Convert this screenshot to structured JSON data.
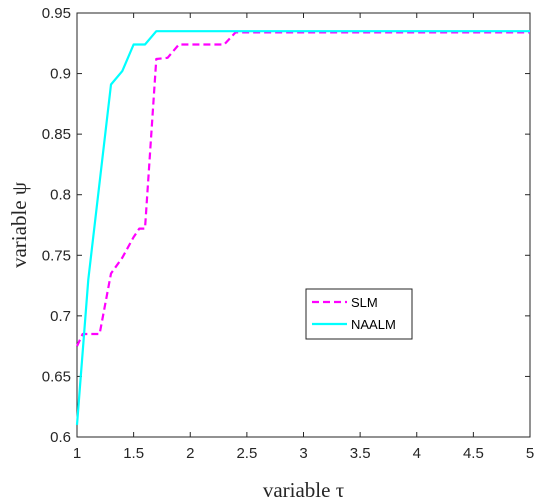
{
  "chart_data": {
    "type": "line",
    "xlabel": "variable τ",
    "ylabel": "variable ψ",
    "xlim": [
      1,
      5
    ],
    "ylim": [
      0.6,
      0.95
    ],
    "x_ticks": [
      "1",
      "1.5",
      "2",
      "2.5",
      "3",
      "3.5",
      "4",
      "4.5",
      "5"
    ],
    "y_ticks": [
      "0.6",
      "0.65",
      "0.7",
      "0.75",
      "0.8",
      "0.85",
      "0.9",
      "0.95"
    ],
    "grid": false,
    "legend_position": "center-right",
    "series": [
      {
        "name": "SLM",
        "color": "#ff00ff",
        "style": "dashed",
        "x": [
          1.0,
          1.05,
          1.2,
          1.3,
          1.4,
          1.5,
          1.55,
          1.6,
          1.7,
          1.8,
          1.9,
          2.0,
          2.1,
          2.2,
          2.3,
          2.4,
          2.5,
          3.0,
          3.5,
          4.0,
          4.5,
          5.0
        ],
        "values": [
          0.675,
          0.685,
          0.685,
          0.735,
          0.748,
          0.765,
          0.772,
          0.772,
          0.912,
          0.913,
          0.924,
          0.924,
          0.924,
          0.924,
          0.924,
          0.934,
          0.934,
          0.934,
          0.934,
          0.934,
          0.934,
          0.934
        ]
      },
      {
        "name": "NAALM",
        "color": "#00ffff",
        "style": "solid",
        "x": [
          1.0,
          1.1,
          1.3,
          1.4,
          1.5,
          1.6,
          1.7,
          2.0,
          2.5,
          3.0,
          3.5,
          4.0,
          4.5,
          5.0
        ],
        "values": [
          0.61,
          0.73,
          0.891,
          0.902,
          0.924,
          0.924,
          0.935,
          0.935,
          0.935,
          0.935,
          0.935,
          0.935,
          0.935,
          0.935
        ]
      }
    ]
  }
}
